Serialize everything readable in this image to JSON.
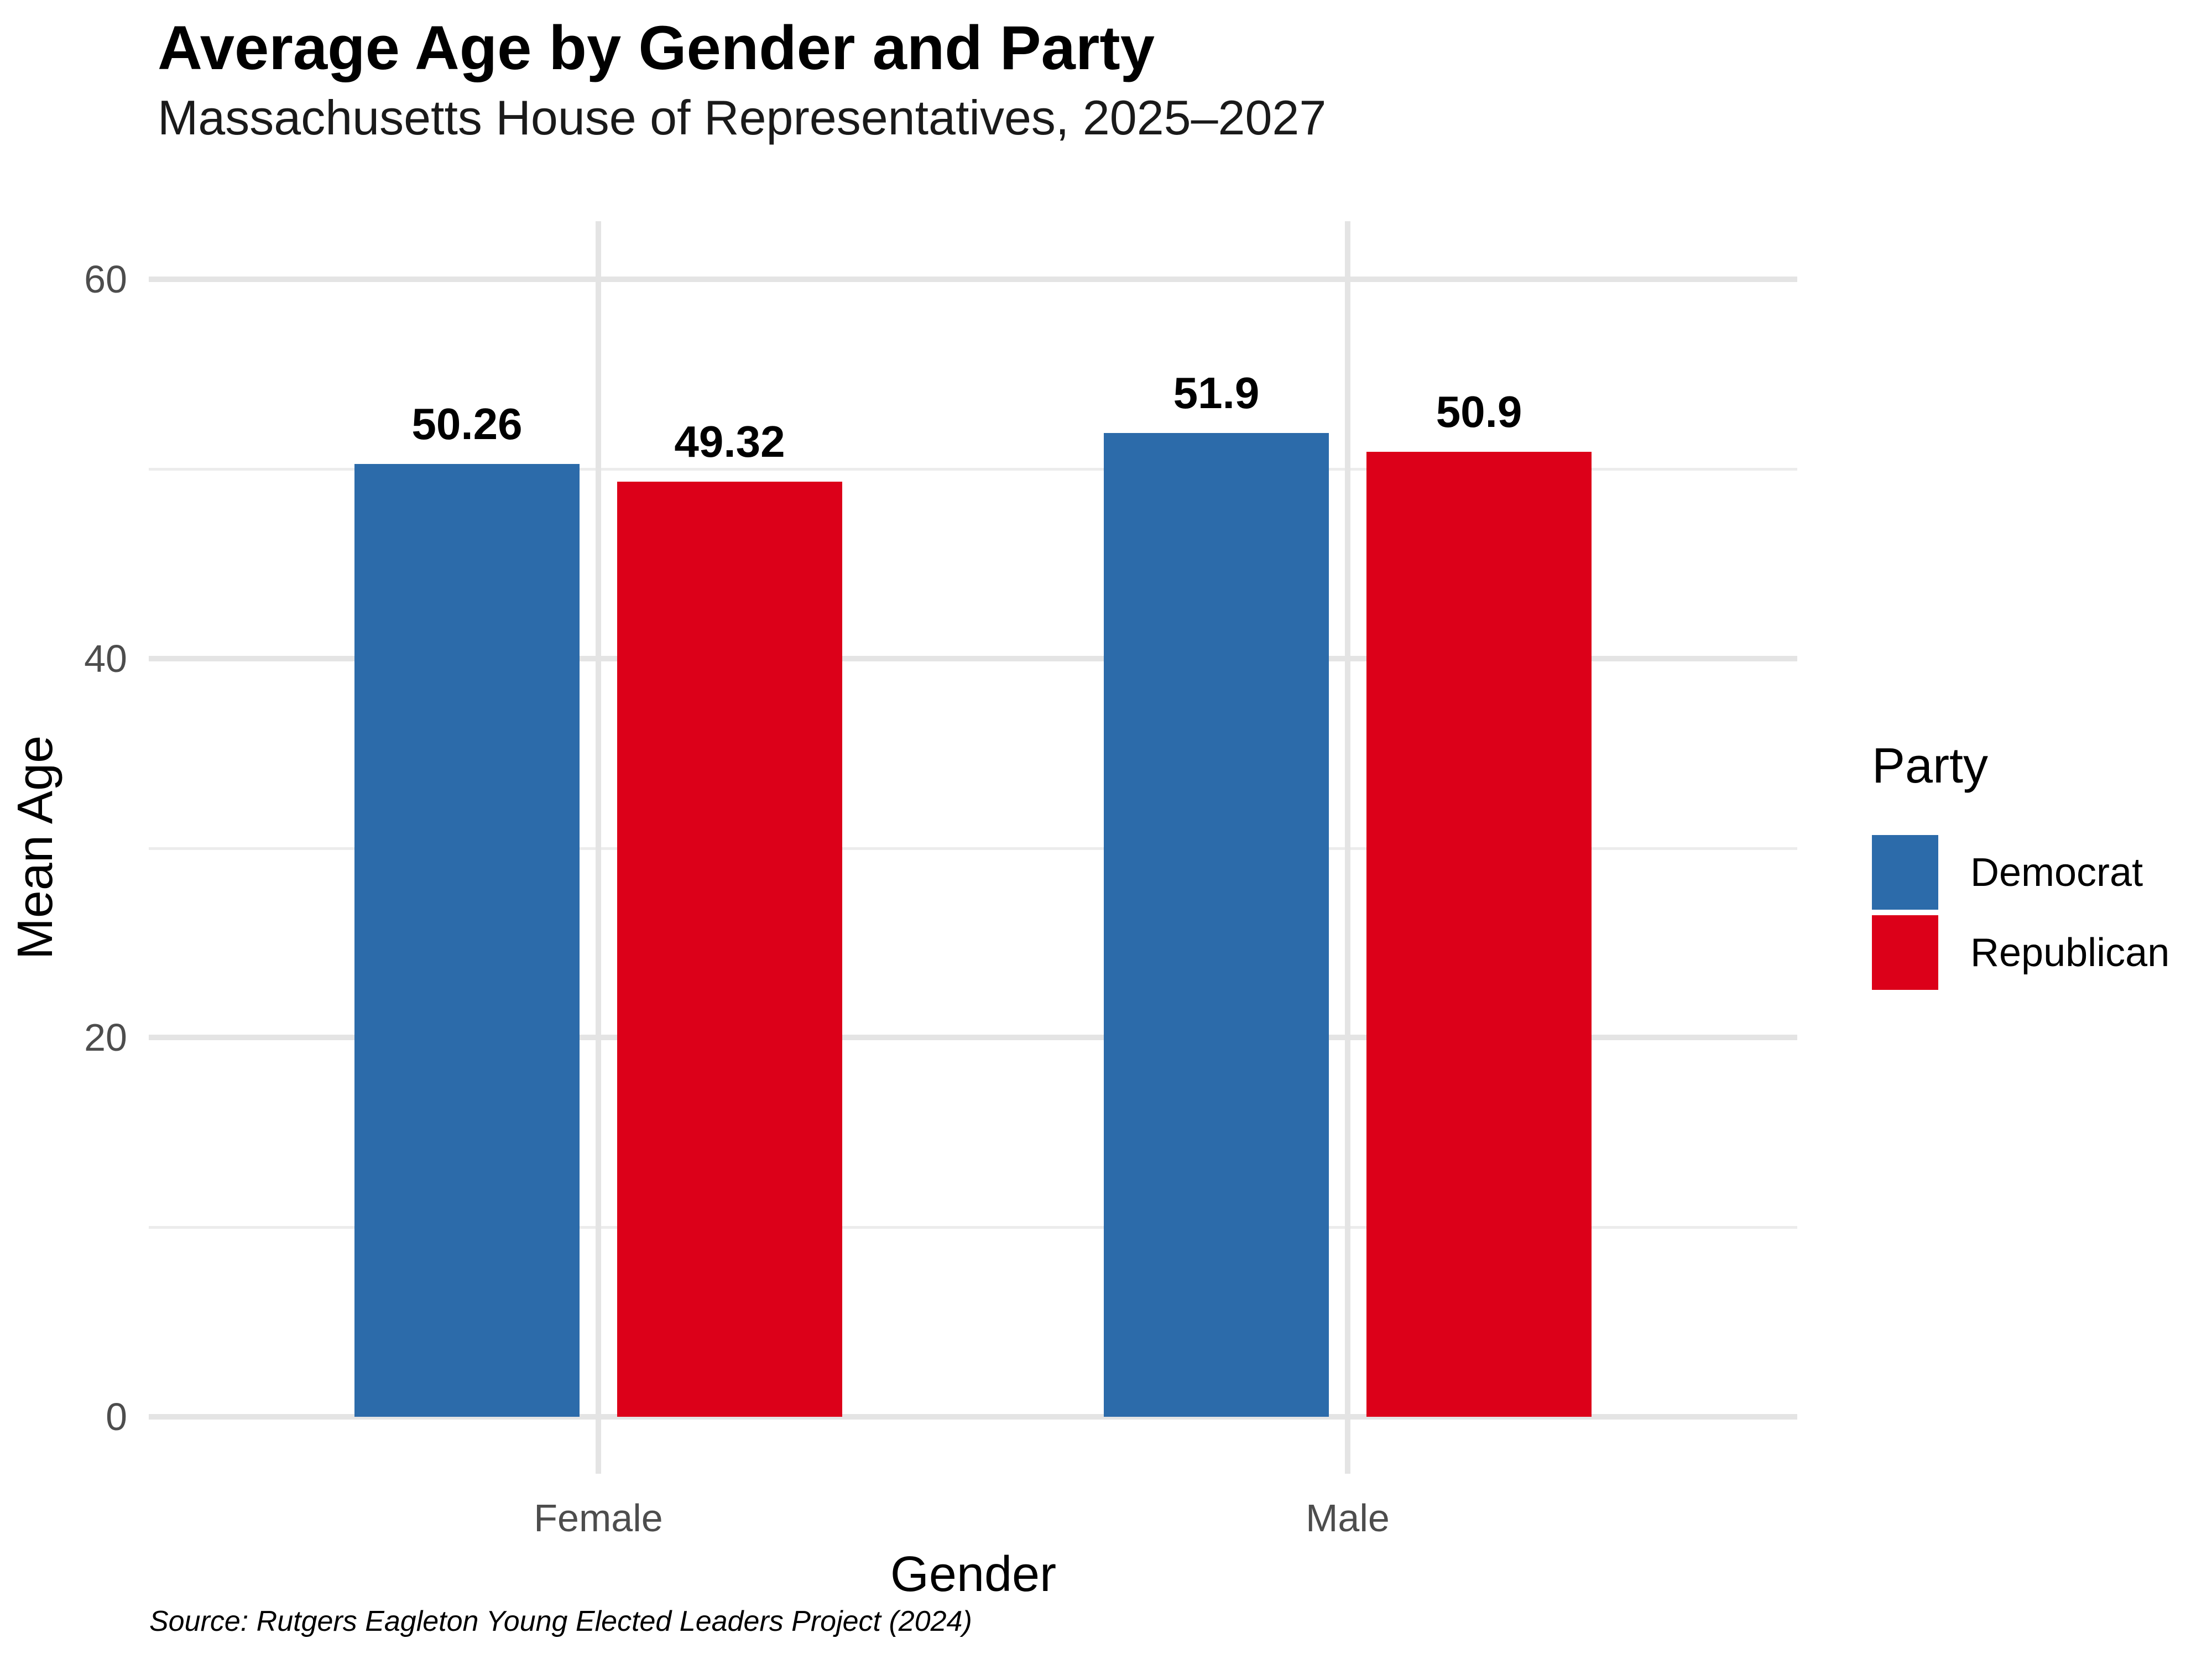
{
  "title": "Average Age by Gender and Party",
  "subtitle": "Massachusetts House of Representatives, 2025–2027",
  "caption": "Source: Rutgers Eagleton Young Elected Leaders Project (2024)",
  "axes": {
    "x_title": "Gender",
    "y_title": "Mean Age",
    "x_tick_labels": [
      "Female",
      "Male"
    ],
    "y_tick_labels": [
      "0",
      "20",
      "40",
      "60"
    ]
  },
  "legend": {
    "title": "Party",
    "entries": [
      {
        "label": "Democrat",
        "color": "#2c6baa"
      },
      {
        "label": "Republican",
        "color": "#dc0019"
      }
    ]
  },
  "colors": {
    "background": "#ffffff",
    "democrat_blue": "#2c6baa",
    "republican_red": "#dc0019",
    "grid_major": "#e4e4e4",
    "grid_minor": "#ececec",
    "tick_text": "#4d4d4d",
    "text": "#000000"
  },
  "chart_data": {
    "type": "bar",
    "title": "Average Age by Gender and Party",
    "subtitle": "Massachusetts House of Representatives, 2025–2027",
    "xlabel": "Gender",
    "ylabel": "Mean Age",
    "categories": [
      "Female",
      "Male"
    ],
    "series": [
      {
        "name": "Democrat",
        "color": "#2c6baa",
        "values": [
          50.26,
          51.9
        ],
        "value_labels": [
          "50.26",
          "51.9"
        ]
      },
      {
        "name": "Republican",
        "color": "#dc0019",
        "values": [
          49.32,
          50.9
        ],
        "value_labels": [
          "49.32",
          "50.9"
        ]
      }
    ],
    "ylim": [
      0,
      63
    ],
    "y_ticks": [
      0,
      20,
      40,
      60
    ],
    "y_major_gridlines": [
      0,
      20,
      40,
      60
    ],
    "y_minor_gridlines": [
      10,
      30,
      50
    ],
    "grid": true,
    "legend_title": "Party",
    "legend_position": "right",
    "bar_value_labels_shown": true
  }
}
